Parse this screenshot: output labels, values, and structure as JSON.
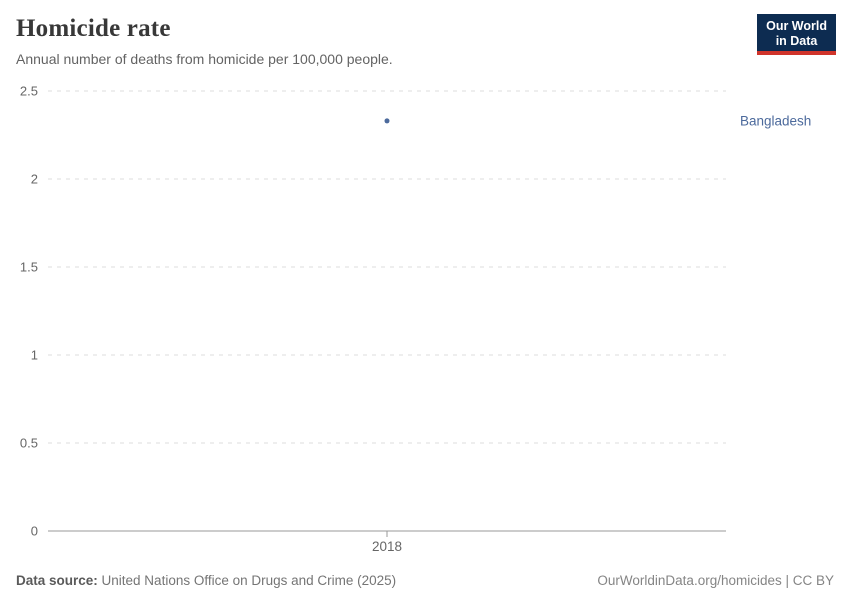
{
  "header": {
    "title": "Homicide rate",
    "subtitle": "Annual number of deaths from homicide per 100,000 people.",
    "logo": {
      "line1": "Our World",
      "line2": "in Data",
      "background_color": "#0d2c51",
      "accent_color": "#d0342b",
      "text_color": "#ffffff"
    }
  },
  "chart_data": {
    "type": "scatter",
    "title": "Homicide rate",
    "subtitle": "Annual number of deaths from homicide per 100,000 people.",
    "series": [
      {
        "name": "Bangladesh",
        "color": "#4c6a9c",
        "points": [
          {
            "x": 2018,
            "y": 2.33
          }
        ]
      }
    ],
    "x_ticks": [
      "2018"
    ],
    "y_ticks": [
      0,
      0.5,
      1,
      1.5,
      2,
      2.5
    ],
    "xlim": [
      2017.5,
      2018.5
    ],
    "ylim": [
      0,
      2.5
    ],
    "xlabel": "",
    "ylabel": "",
    "grid": "dashed-horizontal",
    "legend": "entity-labels-right"
  },
  "colors": {
    "series_blue": "#4c6a9c",
    "grid_gray": "#dddddd",
    "axis_gray": "#999999",
    "tick_text_gray": "#666666"
  },
  "footer": {
    "source_label": "Data source:",
    "source_text": " United Nations Office on Drugs and Crime (2025)",
    "credit": "OurWorldinData.org/homicides | CC BY"
  }
}
